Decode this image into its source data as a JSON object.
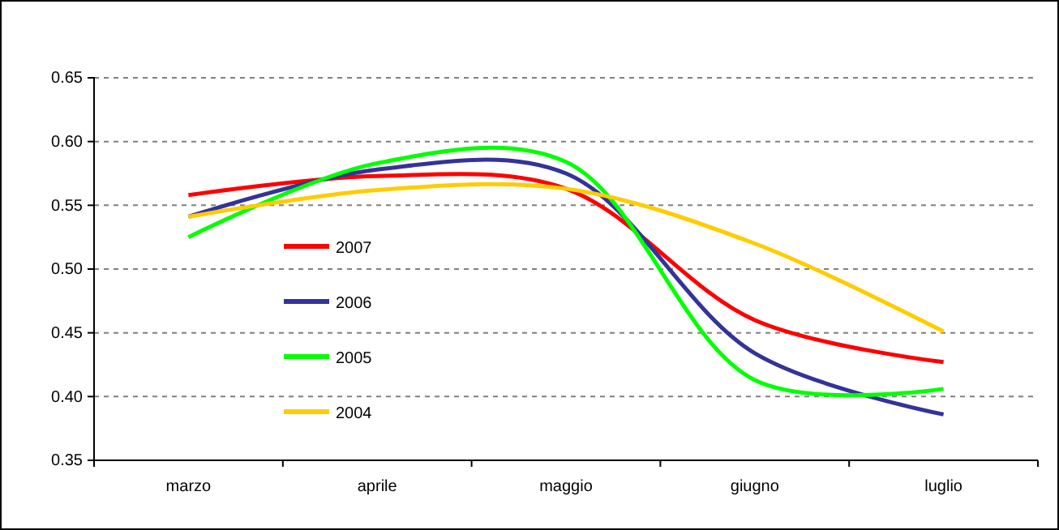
{
  "chart_data": {
    "type": "line",
    "categories": [
      "marzo",
      "aprile",
      "maggio",
      "giugno",
      "luglio"
    ],
    "series": [
      {
        "name": "2007",
        "color": "#ff0000",
        "values": [
          0.558,
          0.573,
          0.563,
          0.46,
          0.427
        ]
      },
      {
        "name": "2006",
        "color": "#333399",
        "values": [
          0.541,
          0.578,
          0.575,
          0.434,
          0.386
        ]
      },
      {
        "name": "2005",
        "color": "#00ff00",
        "values": [
          0.525,
          0.583,
          0.584,
          0.413,
          0.406
        ]
      },
      {
        "name": "2004",
        "color": "#ffcc00",
        "values": [
          0.541,
          0.562,
          0.563,
          0.52,
          0.451
        ]
      }
    ],
    "ylim": [
      0.35,
      0.65
    ],
    "yticks": [
      0.35,
      {
        "value": 0.4,
        "label": "0.40"
      },
      0.45,
      {
        "value": 0.5,
        "label": "0.50"
      },
      0.55,
      {
        "value": 0.6,
        "label": "0.60"
      },
      0.65
    ],
    "grid": "y",
    "legend": "left",
    "marker": "none",
    "line_style": "solid"
  }
}
